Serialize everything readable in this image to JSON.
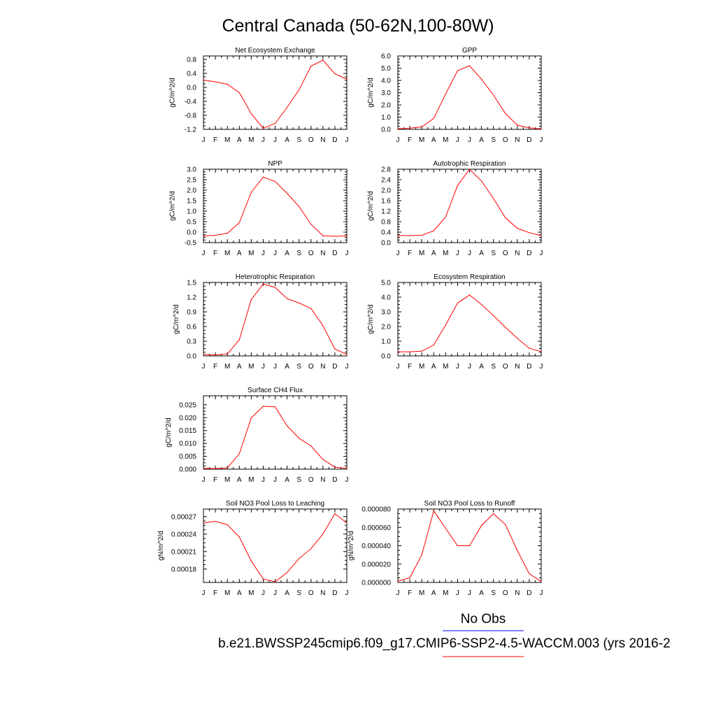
{
  "page": {
    "title": "Central Canada (50-62N,100-80W)",
    "legend": {
      "no_obs_label": "No Obs",
      "no_obs_color": "#0000ff",
      "case_label": "b.e21.BWSSP245cmip6.f09_g17.CMIP6-SSP2-4.5-WACCM.003 (yrs 2016-2",
      "case_color": "#ff0000"
    }
  },
  "chart_data": [
    {
      "type": "line",
      "title": "Net Ecosystem Exchange",
      "ylabel": "gC/m^2/d",
      "categories": [
        "J",
        "F",
        "M",
        "A",
        "M",
        "J",
        "J",
        "A",
        "S",
        "O",
        "N",
        "D",
        "J"
      ],
      "ylim": [
        -1.2,
        0.9
      ],
      "yticks": [
        -1.2,
        -0.8,
        -0.4,
        0.0,
        0.4,
        0.8
      ],
      "ytick_labels": [
        "-1.2",
        "-0.8",
        "-0.4",
        "0.0",
        "0.4",
        "0.8"
      ],
      "series": [
        {
          "color": "#ff0000",
          "values": [
            0.21,
            0.16,
            0.09,
            -0.15,
            -0.75,
            -1.17,
            -1.03,
            -0.57,
            -0.07,
            0.61,
            0.78,
            0.39,
            0.23
          ]
        }
      ]
    },
    {
      "type": "line",
      "title": "GPP",
      "ylabel": "gC/m^2/d",
      "categories": [
        "J",
        "F",
        "M",
        "A",
        "M",
        "J",
        "J",
        "A",
        "S",
        "O",
        "N",
        "D",
        "J"
      ],
      "ylim": [
        0,
        6
      ],
      "yticks": [
        0,
        1,
        2,
        3,
        4,
        5,
        6
      ],
      "ytick_labels": [
        "0.0",
        "1.0",
        "2.0",
        "3.0",
        "4.0",
        "5.0",
        "6.0"
      ],
      "series": [
        {
          "color": "#ff0000",
          "values": [
            0.05,
            0.1,
            0.2,
            0.9,
            2.9,
            4.8,
            5.2,
            4.1,
            2.8,
            1.3,
            0.35,
            0.12,
            0.05
          ]
        }
      ]
    },
    {
      "type": "line",
      "title": "NPP",
      "ylabel": "gC/m^2/d",
      "categories": [
        "J",
        "F",
        "M",
        "A",
        "M",
        "J",
        "J",
        "A",
        "S",
        "O",
        "N",
        "D",
        "J"
      ],
      "ylim": [
        -0.5,
        3.0
      ],
      "yticks": [
        -0.5,
        0.0,
        0.5,
        1.0,
        1.5,
        2.0,
        2.5,
        3.0
      ],
      "ytick_labels": [
        "-0.5",
        "0.0",
        "0.5",
        "1.0",
        "1.5",
        "2.0",
        "2.5",
        "3.0"
      ],
      "series": [
        {
          "color": "#ff0000",
          "values": [
            -0.18,
            -0.15,
            -0.05,
            0.45,
            1.9,
            2.62,
            2.42,
            1.85,
            1.22,
            0.38,
            -0.17,
            -0.2,
            -0.18
          ]
        }
      ]
    },
    {
      "type": "line",
      "title": "Autotrophic Respiration",
      "ylabel": "gC/m^2/d",
      "categories": [
        "J",
        "F",
        "M",
        "A",
        "M",
        "J",
        "J",
        "A",
        "S",
        "O",
        "N",
        "D",
        "J"
      ],
      "ylim": [
        0,
        2.8
      ],
      "yticks": [
        0,
        0.4,
        0.8,
        1.2,
        1.6,
        2.0,
        2.4,
        2.8
      ],
      "ytick_labels": [
        "0.0",
        "0.4",
        "0.8",
        "1.2",
        "1.6",
        "2.0",
        "2.4",
        "2.8"
      ],
      "series": [
        {
          "color": "#ff0000",
          "values": [
            0.27,
            0.27,
            0.28,
            0.45,
            0.98,
            2.18,
            2.8,
            2.35,
            1.68,
            0.95,
            0.55,
            0.38,
            0.27
          ]
        }
      ]
    },
    {
      "type": "line",
      "title": "Heterotrophic Respiration",
      "ylabel": "gC/m^2/d",
      "categories": [
        "J",
        "F",
        "M",
        "A",
        "M",
        "J",
        "J",
        "A",
        "S",
        "O",
        "N",
        "D",
        "J"
      ],
      "ylim": [
        0,
        1.5
      ],
      "yticks": [
        0,
        0.3,
        0.6,
        0.9,
        1.2,
        1.5
      ],
      "ytick_labels": [
        "0.0",
        "0.3",
        "0.6",
        "0.9",
        "1.2",
        "1.5"
      ],
      "series": [
        {
          "color": "#ff0000",
          "values": [
            0.03,
            0.02,
            0.04,
            0.33,
            1.15,
            1.47,
            1.4,
            1.17,
            1.08,
            0.97,
            0.62,
            0.14,
            0.03
          ]
        }
      ]
    },
    {
      "type": "line",
      "title": "Ecosystem Respiration",
      "ylabel": "gC/m^2/d",
      "categories": [
        "J",
        "F",
        "M",
        "A",
        "M",
        "J",
        "J",
        "A",
        "S",
        "O",
        "N",
        "D",
        "J"
      ],
      "ylim": [
        0,
        5
      ],
      "yticks": [
        0,
        1,
        2,
        3,
        4,
        5
      ],
      "ytick_labels": [
        "0.0",
        "1.0",
        "2.0",
        "3.0",
        "4.0",
        "5.0"
      ],
      "series": [
        {
          "color": "#ff0000",
          "values": [
            0.28,
            0.28,
            0.32,
            0.75,
            2.1,
            3.6,
            4.15,
            3.5,
            2.75,
            1.95,
            1.2,
            0.52,
            0.3
          ]
        }
      ]
    },
    {
      "type": "line",
      "title": "Surface CH4 Flux",
      "ylabel": "gC/m^2/d",
      "categories": [
        "J",
        "F",
        "M",
        "A",
        "M",
        "J",
        "J",
        "A",
        "S",
        "O",
        "N",
        "D",
        "J"
      ],
      "ylim": [
        0,
        0.0285
      ],
      "yticks": [
        0,
        0.005,
        0.01,
        0.015,
        0.02,
        0.025
      ],
      "ytick_labels": [
        "0.000",
        "0.005",
        "0.010",
        "0.015",
        "0.020",
        "0.025"
      ],
      "series": [
        {
          "color": "#ff0000",
          "values": [
            0.0003,
            0.0002,
            0.0005,
            0.006,
            0.0199,
            0.0244,
            0.0242,
            0.0168,
            0.012,
            0.009,
            0.0038,
            0.0008,
            0.0003
          ]
        }
      ]
    },
    {
      "type": "line",
      "title": "Soil NO3 Pool Loss to Leaching",
      "ylabel": "gN/m^2/d",
      "categories": [
        "J",
        "F",
        "M",
        "A",
        "M",
        "J",
        "J",
        "A",
        "S",
        "O",
        "N",
        "D",
        "J"
      ],
      "ylim": [
        0.000157,
        0.000283
      ],
      "yticks": [
        0.00018,
        0.00021,
        0.00024,
        0.00027
      ],
      "ytick_labels": [
        "0.00018",
        "0.00021",
        "0.00024",
        "0.00027"
      ],
      "series": [
        {
          "color": "#ff0000",
          "values": [
            0.000259,
            0.000262,
            0.000256,
            0.000235,
            0.000194,
            0.000163,
            0.000158,
            0.000174,
            0.000198,
            0.000215,
            0.00024,
            0.000275,
            0.000259
          ]
        }
      ]
    },
    {
      "type": "line",
      "title": "Soil NO3 Pool Loss to Runoff",
      "ylabel": "gN/m^2/d",
      "categories": [
        "J",
        "F",
        "M",
        "A",
        "M",
        "J",
        "J",
        "A",
        "S",
        "O",
        "N",
        "D",
        "J"
      ],
      "ylim": [
        0,
        8e-05
      ],
      "yticks": [
        0,
        2e-05,
        4e-05,
        6e-05,
        8e-05
      ],
      "ytick_labels": [
        "0.000000",
        "0.000020",
        "0.000040",
        "0.000060",
        "0.000080"
      ],
      "series": [
        {
          "color": "#ff0000",
          "values": [
            1.5e-06,
            5e-06,
            3e-05,
            7.8e-05,
            5.9e-05,
            4e-05,
            4e-05,
            6.2e-05,
            7.5e-05,
            6.3e-05,
            3.5e-05,
            9.5e-06,
            1e-06
          ]
        }
      ]
    }
  ]
}
